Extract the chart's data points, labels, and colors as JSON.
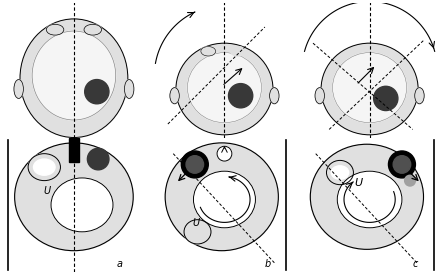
{
  "bg_color": "#ffffff",
  "light_gray": "#e0e0e0",
  "mid_gray": "#a0a0a0",
  "dark_gray": "#505050",
  "darker_gray": "#383838",
  "black": "#000000",
  "white": "#ffffff",
  "near_white": "#f5f5f5",
  "label_a": "a",
  "label_b": "b",
  "label_c": "c",
  "label_u": "U"
}
